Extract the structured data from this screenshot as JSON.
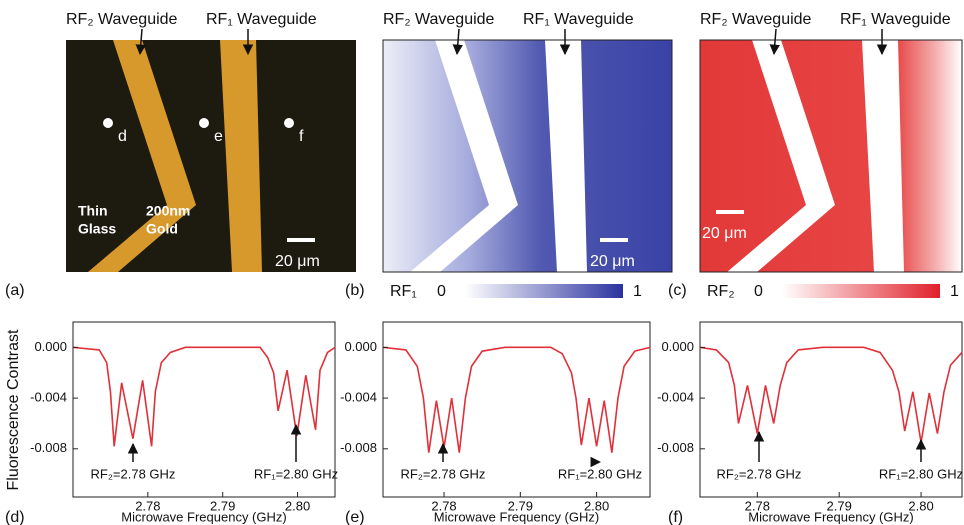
{
  "images": [
    {
      "label": "(a)",
      "waveguide_labels": [
        "RF₂ Waveguide",
        "RF₁ Waveguide"
      ],
      "points": [
        "d",
        "e",
        "f"
      ],
      "materials": [
        [
          "Thin",
          "Glass"
        ],
        [
          "200nm",
          "Gold"
        ]
      ],
      "scalebar": "20 μm"
    },
    {
      "label": "(b)",
      "waveguide_labels": [
        "RF₂ Waveguide",
        "RF₁ Waveguide"
      ],
      "scalebar": "20 μm",
      "colorbar": {
        "label": "RF₁",
        "min": 0,
        "max": 1,
        "color": "#2a32a0"
      }
    },
    {
      "label": "(c)",
      "waveguide_labels": [
        "RF₂ Waveguide",
        "RF₁ Waveguide"
      ],
      "scalebar": "20 μm",
      "colorbar": {
        "label": "RF₂",
        "min": 0,
        "max": 1,
        "color": "#e0202a"
      }
    }
  ],
  "chart_data": [
    {
      "type": "line",
      "label": "(d)",
      "ylabel": "Fluorescence Contrast",
      "xlabel": "Microwave Frequency (GHz)",
      "xlim": [
        2.77,
        2.805
      ],
      "ylim": [
        -0.0118,
        0.002
      ],
      "xticks": [
        2.78,
        2.79,
        {
          "value": 2.8,
          "label": "2.80"
        }
      ],
      "yticks": [
        {
          "value": 0,
          "label": "0.000"
        },
        {
          "value": -0.004,
          "label": "-0.004"
        },
        {
          "value": -0.008,
          "label": "-0.008"
        }
      ],
      "annotations": [
        "RF₂=2.78 GHz",
        "RF₁=2.80 GHz"
      ],
      "series": [
        {
          "color": "#e0303a",
          "x": [
            2.77,
            2.7735,
            2.7745,
            2.775,
            2.7755,
            2.7765,
            2.778,
            2.7793,
            2.7805,
            2.781,
            2.7818,
            2.783,
            2.785,
            2.795,
            2.796,
            2.7968,
            2.7974,
            2.7986,
            2.7999,
            2.8011,
            2.8024,
            2.803,
            2.804,
            2.805
          ],
          "values": [
            0,
            -0.0002,
            -0.0012,
            -0.0035,
            -0.0078,
            -0.0028,
            -0.0072,
            -0.0026,
            -0.0078,
            -0.0035,
            -0.0012,
            -0.0004,
            0,
            0,
            -0.0008,
            -0.002,
            -0.005,
            -0.0018,
            -0.007,
            -0.0022,
            -0.0065,
            -0.0018,
            -0.0004,
            0
          ]
        }
      ]
    },
    {
      "type": "line",
      "label": "(e)",
      "xlabel": "Microwave Frequency (GHz)",
      "xlim": [
        2.772,
        2.807
      ],
      "ylim": [
        -0.0118,
        0.002
      ],
      "xticks": [
        2.78,
        2.79,
        {
          "value": 2.8,
          "label": "2.80"
        }
      ],
      "yticks": [
        {
          "value": 0,
          "label": "0.000"
        },
        {
          "value": -0.004,
          "label": "-0.004"
        },
        {
          "value": -0.008,
          "label": "-0.008"
        }
      ],
      "annotations": [
        "RF₂=2.78 GHz",
        "RF₁=2.80 GHz"
      ],
      "series": [
        {
          "color": "#e0303a",
          "x": [
            2.772,
            2.775,
            2.7765,
            2.7773,
            2.778,
            2.779,
            2.78,
            2.781,
            2.782,
            2.7828,
            2.7836,
            2.785,
            2.788,
            2.794,
            2.7955,
            2.7967,
            2.7973,
            2.798,
            2.799,
            2.8,
            2.801,
            2.802,
            2.8028,
            2.8036,
            2.805,
            2.807
          ],
          "values": [
            0,
            -0.0002,
            -0.0015,
            -0.004,
            -0.0083,
            -0.0042,
            -0.0079,
            -0.004,
            -0.0083,
            -0.004,
            -0.0015,
            -0.0003,
            0,
            0,
            -0.0005,
            -0.002,
            -0.004,
            -0.0077,
            -0.004,
            -0.0078,
            -0.0042,
            -0.0083,
            -0.004,
            -0.0015,
            -0.0003,
            0
          ]
        }
      ]
    },
    {
      "type": "line",
      "label": "(f)",
      "xlabel": "Microwave Frequency (GHz)",
      "xlim": [
        2.773,
        2.805
      ],
      "ylim": [
        -0.0118,
        0.002
      ],
      "xticks": [
        2.78,
        2.79,
        {
          "value": 2.8,
          "label": "2.80"
        }
      ],
      "yticks": [
        {
          "value": 0,
          "label": "0.000"
        },
        {
          "value": -0.004,
          "label": "-0.004"
        },
        {
          "value": -0.008,
          "label": "-0.008"
        }
      ],
      "annotations": [
        "RF₂=2.78 GHz",
        "RF₁=2.80 GHz"
      ],
      "series": [
        {
          "color": "#e0303a",
          "x": [
            2.773,
            2.775,
            2.7765,
            2.7772,
            2.7777,
            2.7788,
            2.78,
            2.781,
            2.782,
            2.7828,
            2.7836,
            2.785,
            2.788,
            2.793,
            2.795,
            2.7965,
            2.7973,
            2.798,
            2.799,
            2.8,
            2.801,
            2.802,
            2.8028,
            2.8036,
            2.805
          ],
          "values": [
            0,
            -0.0002,
            -0.0012,
            -0.003,
            -0.006,
            -0.003,
            -0.0068,
            -0.003,
            -0.006,
            -0.003,
            -0.0012,
            -0.0002,
            0,
            0,
            -0.0004,
            -0.0018,
            -0.0035,
            -0.0066,
            -0.0035,
            -0.0075,
            -0.0036,
            -0.0068,
            -0.0035,
            -0.0014,
            -0.0004
          ]
        }
      ]
    }
  ]
}
